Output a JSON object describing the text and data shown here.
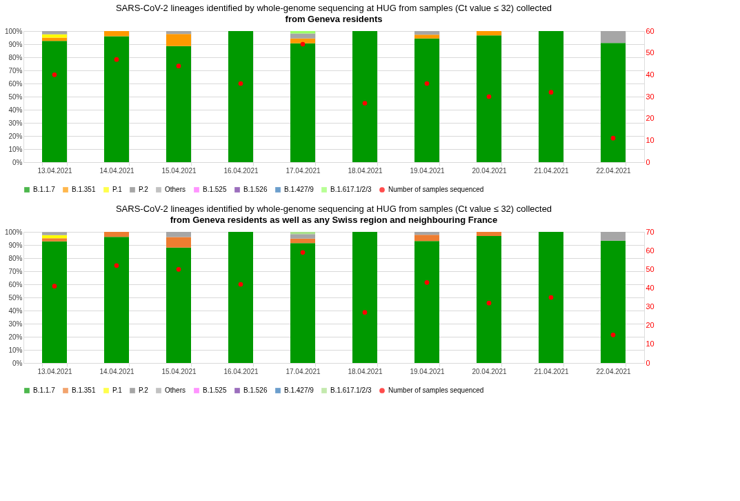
{
  "chart_data": [
    {
      "type": "bar",
      "stacked": true,
      "title": "SARS-CoV-2 lineages identified by whole-genome sequencing at HUG  from samples (Ct value ≤ 32)  collected",
      "subtitle": "from Geneva residents",
      "legend": "bottom",
      "grid": true,
      "categories": [
        "13.04.2021",
        "14.04.2021",
        "15.04.2021",
        "16.04.2021",
        "17.04.2021",
        "18.04.2021",
        "19.04.2021",
        "20.04.2021",
        "21.04.2021",
        "22.04.2021"
      ],
      "ylim": [
        0,
        100
      ],
      "yticks": [
        {
          "value": 0,
          "label": "0%"
        },
        {
          "value": 10,
          "label": "10%"
        },
        {
          "value": 20,
          "label": "20%"
        },
        {
          "value": 30,
          "label": "30%"
        },
        {
          "value": 40,
          "label": "40%"
        },
        {
          "value": 50,
          "label": "50%"
        },
        {
          "value": 60,
          "label": "60%"
        },
        {
          "value": 70,
          "label": "70%"
        },
        {
          "value": 80,
          "label": "80%"
        },
        {
          "value": 90,
          "label": "90%"
        },
        {
          "value": 100,
          "label": "100%"
        }
      ],
      "y2lim": [
        0,
        60
      ],
      "y2ticks": [
        0,
        10,
        20,
        30,
        40,
        50,
        60
      ],
      "series": [
        {
          "name": "B.1.1.7",
          "color": "#009900",
          "values": [
            92.5,
            96,
            88.6,
            100,
            90.7,
            100,
            94.4,
            96.7,
            100,
            90.9
          ]
        },
        {
          "name": "B.1.351",
          "color": "#ff9900",
          "values": [
            2.5,
            4,
            9.1,
            0,
            3.7,
            0,
            2.8,
            3.3,
            0,
            0
          ]
        },
        {
          "name": "P.1",
          "color": "#ffff00",
          "values": [
            2.5,
            0,
            0,
            0,
            0,
            0,
            0,
            0,
            0,
            0
          ]
        },
        {
          "name": "P.2",
          "color": "#808080",
          "values": [
            0,
            0,
            0,
            0,
            0,
            0,
            0,
            0,
            0,
            0
          ]
        },
        {
          "name": "Others",
          "color": "#a6a6a6",
          "values": [
            2.5,
            0,
            2.3,
            0,
            3.7,
            0,
            2.8,
            0,
            0,
            9.1
          ]
        },
        {
          "name": "B.1.525",
          "color": "#ff66ff",
          "values": [
            0,
            0,
            0,
            0,
            0,
            0,
            0,
            0,
            0,
            0
          ]
        },
        {
          "name": "B.1.526",
          "color": "#7030a0",
          "values": [
            0,
            0,
            0,
            0,
            0,
            0,
            0,
            0,
            0,
            0
          ]
        },
        {
          "name": "B.1.427/9",
          "color": "#2e75b6",
          "values": [
            0,
            0,
            0,
            0,
            0,
            0,
            0,
            0,
            0,
            0
          ]
        },
        {
          "name": "B.1.617.1/2/3",
          "color": "#99ff66",
          "values": [
            0,
            0,
            0,
            0,
            1.9,
            0,
            0,
            0,
            0,
            0
          ]
        },
        {
          "name": "Number of samples sequenced",
          "color": "#ff0000",
          "type": "scatter",
          "marker": "circle",
          "axis": "y2",
          "values": [
            40,
            47,
            44,
            36,
            54,
            27,
            36,
            30,
            32,
            11
          ]
        }
      ]
    },
    {
      "type": "bar",
      "stacked": true,
      "title": "SARS-CoV-2 lineages identified by whole-genome sequencing at HUG from samples (Ct value ≤ 32) collected",
      "subtitle": "from Geneva residents as well as any Swiss region and neighbouring France",
      "legend": "bottom",
      "grid": "y",
      "categories": [
        "13.04.2021",
        "14.04.2021",
        "15.04.2021",
        "16.04.2021",
        "17.04.2021",
        "18.04.2021",
        "19.04.2021",
        "20.04.2021",
        "21.04.2021",
        "22.04.2021"
      ],
      "ylim": [
        0,
        100
      ],
      "yticks": [
        {
          "value": 0,
          "label": "0%"
        },
        {
          "value": 10,
          "label": "10%"
        },
        {
          "value": 20,
          "label": "20%"
        },
        {
          "value": 30,
          "label": "30%"
        },
        {
          "value": 40,
          "label": "40%"
        },
        {
          "value": 50,
          "label": "50%"
        },
        {
          "value": 60,
          "label": "60%"
        },
        {
          "value": 70,
          "label": "70%"
        },
        {
          "value": 80,
          "label": "80%"
        },
        {
          "value": 90,
          "label": "90%"
        },
        {
          "value": 100,
          "label": "100%"
        }
      ],
      "y2lim": [
        0,
        70
      ],
      "y2ticks": [
        0,
        10,
        20,
        30,
        40,
        50,
        60,
        70
      ],
      "series": [
        {
          "name": "B.1.1.7",
          "color": "#009900",
          "values": [
            92.7,
            96.2,
            88,
            100,
            91.5,
            100,
            93,
            96.9,
            100,
            93.3
          ]
        },
        {
          "name": "B.1.351",
          "color": "#ed7d31",
          "values": [
            2.4,
            3.8,
            8,
            0,
            3.4,
            0,
            4.7,
            3.1,
            0,
            0
          ]
        },
        {
          "name": "P.1",
          "color": "#ffff00",
          "values": [
            2.4,
            0,
            0,
            0,
            0,
            0,
            0,
            0,
            0,
            0
          ]
        },
        {
          "name": "P.2",
          "color": "#808080",
          "values": [
            0,
            0,
            0,
            0,
            0,
            0,
            0,
            0,
            0,
            0
          ]
        },
        {
          "name": "Others",
          "color": "#a6a6a6",
          "values": [
            2.4,
            0,
            4,
            0,
            3.4,
            0,
            2.3,
            0,
            0,
            6.7
          ]
        },
        {
          "name": "B.1.525",
          "color": "#ff66ff",
          "values": [
            0,
            0,
            0,
            0,
            0,
            0,
            0,
            0,
            0,
            0
          ]
        },
        {
          "name": "B.1.526",
          "color": "#7030a0",
          "values": [
            0,
            0,
            0,
            0,
            0,
            0,
            0,
            0,
            0,
            0
          ]
        },
        {
          "name": "B.1.427/9",
          "color": "#2e75b6",
          "values": [
            0,
            0,
            0,
            0,
            0,
            0,
            0,
            0,
            0,
            0
          ]
        },
        {
          "name": "B.1.617.1/2/3",
          "color": "#a9e08a",
          "values": [
            0,
            0,
            0,
            0,
            1.7,
            0,
            0,
            0,
            0,
            0
          ]
        },
        {
          "name": "Number of samples sequenced",
          "color": "#ff0000",
          "type": "scatter",
          "marker": "circle",
          "axis": "y2",
          "values": [
            41,
            52,
            50,
            42,
            59,
            27,
            43,
            32,
            35,
            15
          ]
        }
      ]
    }
  ]
}
